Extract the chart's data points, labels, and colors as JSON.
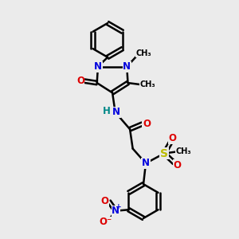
{
  "bg_color": "#ebebeb",
  "bond_color": "#000000",
  "bond_width": 1.8,
  "atom_colors": {
    "N": "#0000dd",
    "O": "#dd0000",
    "S": "#bbbb00",
    "H": "#008888",
    "C": "#000000"
  },
  "font_size_atom": 8.5,
  "font_size_small": 7.0,
  "xlim": [
    0,
    10
  ],
  "ylim": [
    0,
    10
  ]
}
